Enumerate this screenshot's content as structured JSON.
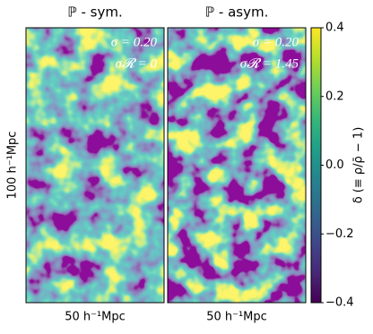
{
  "chart_data": [
    {
      "type": "image",
      "title": "ℙ - sym.",
      "annotations": [
        "σ = 0.20",
        "σ𝓡 = 0"
      ],
      "xlabel": "50 h⁻¹Mpc",
      "ylabel": "100 h⁻¹Mpc"
    },
    {
      "type": "image",
      "title": "ℙ - asym.",
      "annotations": [
        "σ = 0.20",
        "σ𝓡 = 1.45"
      ],
      "xlabel": "50 h⁻¹Mpc"
    }
  ],
  "colorbar": {
    "label": "δ (≡ ρ/ρ̄ − 1)",
    "clim": [
      -0.4,
      0.4
    ],
    "ticks": [
      {
        "value": -0.4,
        "label": "−0.4"
      },
      {
        "value": -0.2,
        "label": "−0.2"
      },
      {
        "value": 0,
        "label": "0.0"
      },
      0.2,
      0.4
    ],
    "colors": [
      "#440154",
      "#482878",
      "#3e4989",
      "#31688e",
      "#26828e",
      "#1f9e89",
      "#35b779",
      "#6ece58",
      "#b5de2b",
      "#fde725"
    ]
  }
}
